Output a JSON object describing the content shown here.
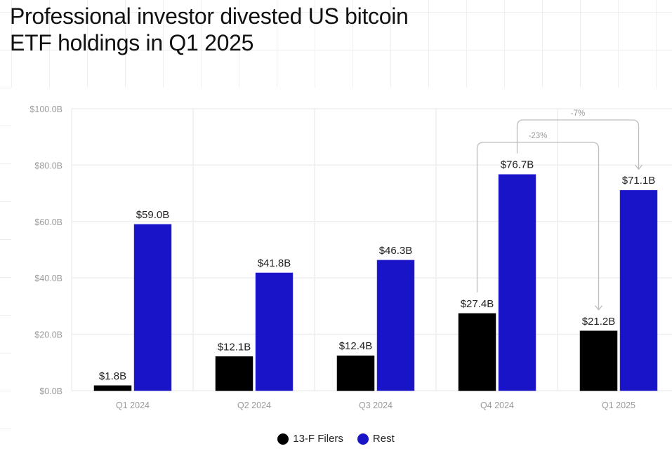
{
  "title_line1": "Professional investor divested US bitcoin",
  "title_line2": "ETF holdings in Q1 2025",
  "colors": {
    "filers": "#000000",
    "rest": "#1a14c8",
    "grid": "#eeeeee",
    "axis_text": "#9a9a9a",
    "label_text": "#222222",
    "annotation": "#bdbdbd"
  },
  "chart_data": {
    "type": "bar",
    "title": "Professional investor divested US bitcoin ETF holdings in Q1 2025",
    "xlabel": "",
    "ylabel": "",
    "categories": [
      "Q1 2024",
      "Q2 2024",
      "Q3 2024",
      "Q4 2024",
      "Q1 2025"
    ],
    "series": [
      {
        "name": "13-F Filers",
        "values": [
          1.8,
          12.1,
          12.4,
          27.4,
          21.2
        ],
        "labels": [
          "$1.8B",
          "$12.1B",
          "$12.4B",
          "$27.4B",
          "$21.2B"
        ]
      },
      {
        "name": "Rest",
        "values": [
          59.0,
          41.8,
          46.3,
          76.7,
          71.1
        ],
        "labels": [
          "$59.0B",
          "$41.8B",
          "$46.3B",
          "$76.7B",
          "$71.1B"
        ]
      }
    ],
    "ylim": [
      0,
      100
    ],
    "yticks": [
      0,
      20,
      40,
      60,
      80,
      100
    ],
    "ytick_labels": [
      "$0.0B",
      "$20.0B",
      "$40.0B",
      "$60.0B",
      "$80.0B",
      "$100.0B"
    ],
    "grid": true,
    "legend": "bottom-center",
    "annotations": [
      {
        "label": "-23%",
        "from_category": "Q4 2024",
        "from_series": "13-F Filers",
        "to_category": "Q1 2025",
        "to_series": "13-F Filers"
      },
      {
        "label": "-7%",
        "from_category": "Q4 2024",
        "from_series": "Rest",
        "to_category": "Q1 2025",
        "to_series": "Rest"
      }
    ]
  },
  "legend": [
    {
      "label": "13-F Filers",
      "color": "#000000"
    },
    {
      "label": "Rest",
      "color": "#1a14c8"
    }
  ]
}
